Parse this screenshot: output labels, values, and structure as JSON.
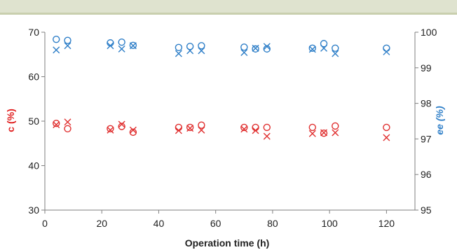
{
  "chart_data": {
    "type": "scatter",
    "xlabel": "Operation time (h)",
    "ylabel_left": "c (%)",
    "ylabel_right": "ee (%)",
    "xlim": [
      0,
      130
    ],
    "ylim_left": [
      30,
      70
    ],
    "ylim_right": [
      95,
      100
    ],
    "x_ticks": [
      0,
      20,
      40,
      60,
      80,
      100,
      120
    ],
    "y_left_ticks": [
      30,
      40,
      50,
      60,
      70
    ],
    "y_right_ticks": [
      95,
      96,
      97,
      98,
      99,
      100
    ],
    "grid": false,
    "legend": "none",
    "colors": {
      "conversion": "#e03030",
      "ee": "#2f7fc8",
      "text_conversion": "#e02020",
      "text_ee": "#2f7fc8"
    },
    "series": [
      {
        "axis": "left",
        "marker": "circle",
        "color": "conversion",
        "points": [
          [
            4,
            49.5
          ],
          [
            8,
            48.3
          ],
          [
            23,
            48.3
          ],
          [
            27,
            48.8
          ],
          [
            31,
            47.5
          ],
          [
            47,
            48.6
          ],
          [
            51,
            48.6
          ],
          [
            55,
            49.1
          ],
          [
            70,
            48.6
          ],
          [
            74,
            48.6
          ],
          [
            78,
            48.6
          ],
          [
            94,
            48.6
          ],
          [
            98,
            47.3
          ],
          [
            102,
            48.9
          ],
          [
            120,
            48.6
          ]
        ]
      },
      {
        "axis": "left",
        "marker": "x",
        "color": "conversion",
        "points": [
          [
            4,
            49.2
          ],
          [
            8,
            49.8
          ],
          [
            23,
            48.0
          ],
          [
            27,
            49.3
          ],
          [
            31,
            48.0
          ],
          [
            47,
            47.9
          ],
          [
            51,
            48.4
          ],
          [
            55,
            48.0
          ],
          [
            70,
            48.2
          ],
          [
            74,
            47.9
          ],
          [
            78,
            46.6
          ],
          [
            94,
            47.2
          ],
          [
            98,
            47.4
          ],
          [
            102,
            47.4
          ],
          [
            120,
            46.3
          ]
        ]
      },
      {
        "axis": "right",
        "marker": "circle",
        "color": "ee",
        "points": [
          [
            4,
            99.8
          ],
          [
            8,
            99.77
          ],
          [
            23,
            99.7
          ],
          [
            27,
            99.72
          ],
          [
            31,
            99.63
          ],
          [
            47,
            99.57
          ],
          [
            51,
            99.6
          ],
          [
            55,
            99.62
          ],
          [
            70,
            99.58
          ],
          [
            74,
            99.53
          ],
          [
            78,
            99.53
          ],
          [
            94,
            99.55
          ],
          [
            98,
            99.68
          ],
          [
            102,
            99.55
          ],
          [
            120,
            99.55
          ]
        ]
      },
      {
        "axis": "right",
        "marker": "x",
        "color": "ee",
        "points": [
          [
            4,
            99.5
          ],
          [
            8,
            99.62
          ],
          [
            23,
            99.62
          ],
          [
            27,
            99.53
          ],
          [
            31,
            99.62
          ],
          [
            47,
            99.4
          ],
          [
            51,
            99.48
          ],
          [
            55,
            99.48
          ],
          [
            70,
            99.43
          ],
          [
            74,
            99.55
          ],
          [
            78,
            99.6
          ],
          [
            94,
            99.52
          ],
          [
            98,
            99.55
          ],
          [
            102,
            99.4
          ],
          [
            120,
            99.45
          ]
        ]
      }
    ]
  }
}
